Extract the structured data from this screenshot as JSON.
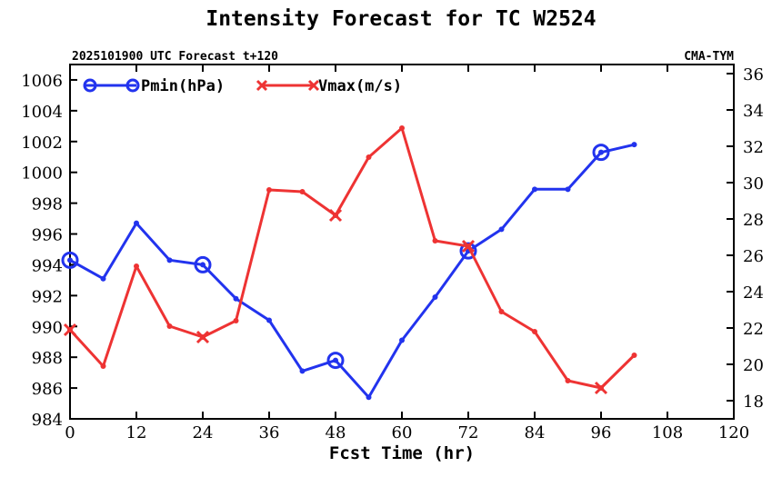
{
  "chart_data": {
    "type": "line",
    "title": "Intensity Forecast for TC W2524",
    "subtitle_left": "2025101900 UTC Forecast t+120",
    "subtitle_right": "CMA-TYM",
    "xlabel": "Fcst Time (hr)",
    "x_ticks": [
      "0",
      "12",
      "24",
      "36",
      "48",
      "60",
      "72",
      "84",
      "96",
      "108",
      "120"
    ],
    "xlim": [
      0,
      120
    ],
    "left_axis": {
      "ylim": [
        984,
        1007
      ],
      "ticks": [
        "984",
        "986",
        "988",
        "990",
        "992",
        "994",
        "996",
        "998",
        "1000",
        "1002",
        "1004",
        "1006"
      ]
    },
    "right_axis": {
      "ylim": [
        17,
        36.5
      ],
      "ticks": [
        "18",
        "20",
        "22",
        "24",
        "26",
        "28",
        "30",
        "32",
        "34",
        "36"
      ]
    },
    "series": [
      {
        "name": "Pmin(hPa)",
        "axis": "left",
        "color": "#2233ee",
        "marker": "circle",
        "x": [
          0,
          6,
          12,
          18,
          24,
          30,
          36,
          42,
          48,
          54,
          60,
          66,
          72,
          78,
          84,
          90,
          96,
          102
        ],
        "values": [
          994.3,
          993.1,
          996.7,
          994.3,
          994.0,
          991.8,
          990.4,
          987.1,
          987.8,
          985.4,
          989.1,
          991.9,
          994.9,
          996.3,
          998.9,
          998.9,
          1001.3,
          1001.8
        ],
        "marker_x": [
          0,
          24,
          48,
          72,
          96
        ]
      },
      {
        "name": "Vmax(m/s)",
        "axis": "right",
        "color": "#ee3333",
        "marker": "x",
        "x": [
          0,
          6,
          12,
          18,
          24,
          30,
          36,
          42,
          48,
          54,
          60,
          66,
          72,
          78,
          84,
          90,
          96,
          102
        ],
        "values": [
          21.9,
          19.9,
          25.4,
          22.1,
          21.5,
          22.4,
          29.6,
          29.5,
          28.2,
          31.4,
          33.0,
          26.8,
          26.5,
          22.9,
          21.8,
          19.1,
          18.7,
          20.5
        ],
        "marker_x": [
          0,
          24,
          48,
          72,
          96
        ]
      }
    ]
  }
}
